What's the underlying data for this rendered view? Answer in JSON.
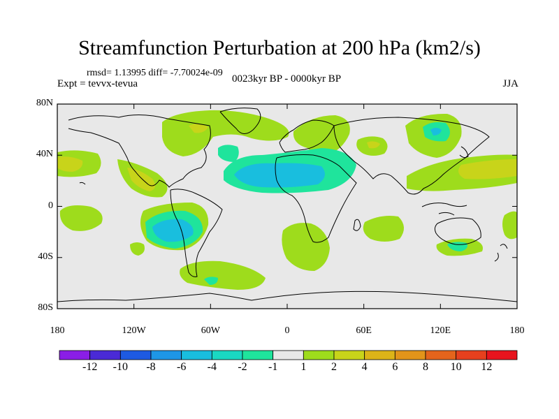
{
  "title": "Streamfunction Perturbation at 200 hPa (km2/s)",
  "stats": "rmsd= 1.13995 diff= -7.70024e-09",
  "experiment": "Expt = tevvx-tevua",
  "period": "0023kyr BP - 0000kyr BP",
  "season": "JJA",
  "lat_ticks": [
    {
      "value": 80,
      "label": "80N"
    },
    {
      "value": 40,
      "label": "40N"
    },
    {
      "value": 0,
      "label": "0"
    },
    {
      "value": -40,
      "label": "40S"
    },
    {
      "value": -80,
      "label": "80S"
    }
  ],
  "lon_ticks": [
    {
      "value": -180,
      "label": "180"
    },
    {
      "value": -120,
      "label": "120W"
    },
    {
      "value": -60,
      "label": "60W"
    },
    {
      "value": 0,
      "label": "0"
    },
    {
      "value": 60,
      "label": "60E"
    },
    {
      "value": 120,
      "label": "120E"
    },
    {
      "value": 180,
      "label": "180"
    }
  ],
  "colorbar": {
    "colors": [
      "#8a1ee6",
      "#4a2ad6",
      "#1e5ae2",
      "#1e96e6",
      "#19bede",
      "#1ad8c2",
      "#1fe49c",
      "#e8e8e8",
      "#9edc1c",
      "#c8d41a",
      "#dcb418",
      "#e2941a",
      "#e4641c",
      "#e6401e",
      "#e8141e"
    ],
    "labels": [
      "-12",
      "-10",
      "-8",
      "-6",
      "-4",
      "-2",
      "-1",
      "1",
      "2",
      "4",
      "6",
      "8",
      "10",
      "12"
    ]
  },
  "field_colors": {
    "background": "#e8e8e8",
    "pos1": "#9edc1c",
    "pos2": "#c8d41a",
    "pos3": "#dcb418",
    "neg1": "#1fe49c",
    "neg2": "#1ad8c2",
    "neg3": "#19bede"
  }
}
